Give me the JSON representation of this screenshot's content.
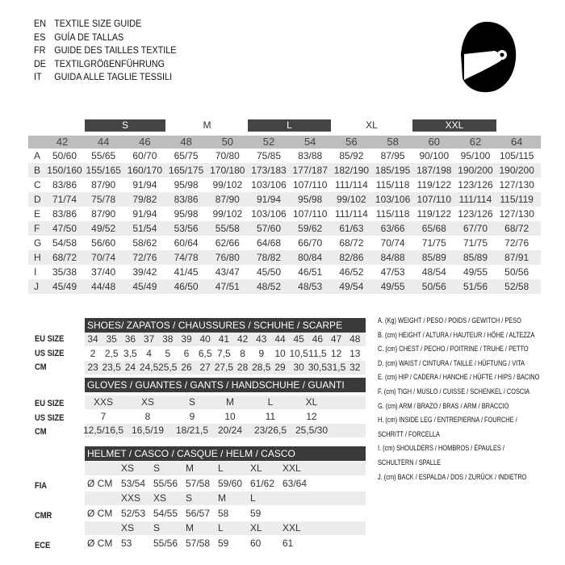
{
  "titles": [
    {
      "code": "EN",
      "text": "TEXTILE SIZE GUIDE"
    },
    {
      "code": "ES",
      "text": "GUÍA DE TALLAS"
    },
    {
      "code": "FR",
      "text": "GUIDE DES TAILLES TEXTILE"
    },
    {
      "code": "DE",
      "text": "TEXTILGRÖßENFÜHRUNG"
    },
    {
      "code": "IT",
      "text": "GUIDA ALLE TAGLIE TESSILI"
    }
  ],
  "helmet_icon": "helmet-icon",
  "textile": {
    "size_groups": [
      "S",
      "M",
      "L",
      "XL",
      "XXL"
    ],
    "columns": [
      "42",
      "44",
      "46",
      "48",
      "50",
      "52",
      "54",
      "56",
      "58",
      "60",
      "62",
      "64"
    ],
    "rows": [
      {
        "label": "A",
        "values": [
          "50/60",
          "55/65",
          "60/70",
          "65/75",
          "70/80",
          "75/85",
          "83/88",
          "85/92",
          "87/95",
          "90/100",
          "95/100",
          "105/115"
        ]
      },
      {
        "label": "B",
        "values": [
          "150/160",
          "155/165",
          "160/170",
          "165/175",
          "170/180",
          "173/183",
          "177/187",
          "182/190",
          "185/195",
          "187/198",
          "190/200",
          "190/200"
        ]
      },
      {
        "label": "C",
        "values": [
          "83/86",
          "87/90",
          "91/94",
          "95/98",
          "99/102",
          "103/106",
          "107/110",
          "111/114",
          "115/118",
          "119/122",
          "123/126",
          "127/130"
        ]
      },
      {
        "label": "D",
        "values": [
          "71/74",
          "75/78",
          "79/82",
          "83/86",
          "87/90",
          "91/94",
          "95/98",
          "99/102",
          "103/106",
          "107/110",
          "111/114",
          "115/119"
        ]
      },
      {
        "label": "E",
        "values": [
          "83/86",
          "87/90",
          "91/94",
          "95/98",
          "99/102",
          "103/106",
          "107/110",
          "111/114",
          "115/118",
          "119/122",
          "123/126",
          "127/130"
        ]
      },
      {
        "label": "F",
        "values": [
          "47/50",
          "49/52",
          "51/54",
          "53/56",
          "55/58",
          "57/60",
          "59/62",
          "61/63",
          "63/66",
          "65/68",
          "67/70",
          "68/72"
        ]
      },
      {
        "label": "G",
        "values": [
          "54/58",
          "56/60",
          "58/62",
          "60/64",
          "62/66",
          "64/68",
          "66/70",
          "68/72",
          "70/74",
          "71/75",
          "71/75",
          "72/76"
        ]
      },
      {
        "label": "H",
        "values": [
          "68/72",
          "70/74",
          "72/76",
          "74/78",
          "76/80",
          "78/82",
          "80/84",
          "82/86",
          "84/88",
          "85/89",
          "85/89",
          "87/91"
        ]
      },
      {
        "label": "I",
        "values": [
          "35/38",
          "37/40",
          "39/42",
          "41/45",
          "43/47",
          "45/50",
          "46/51",
          "46/52",
          "47/53",
          "48/54",
          "49/55",
          "50/56"
        ]
      },
      {
        "label": "J",
        "values": [
          "45/49",
          "44/48",
          "45/49",
          "46/50",
          "47/51",
          "48/52",
          "48/53",
          "49/54",
          "49/55",
          "50/56",
          "51/56",
          "52/58"
        ]
      }
    ]
  },
  "shoes": {
    "title": "SHOES/ ZAPATOS / CHAUSSURES / SCHUHE / SCARPE",
    "rows": [
      {
        "label": "EU SIZE",
        "values": [
          "34",
          "35",
          "36",
          "37",
          "38",
          "39",
          "40",
          "41",
          "42",
          "43",
          "44",
          "45",
          "46",
          "47",
          "48"
        ]
      },
      {
        "label": "US SIZE",
        "values": [
          "2",
          "2,5",
          "3,5",
          "4",
          "5",
          "6",
          "6,5",
          "7,5",
          "8",
          "9",
          "10",
          "10,5",
          "11,5",
          "12",
          "13"
        ]
      },
      {
        "label": "CM",
        "values": [
          "23",
          "23,5",
          "24",
          "24,5",
          "25,5",
          "26",
          "27",
          "27,5",
          "28",
          "28,5",
          "29",
          "30",
          "30,5",
          "31,5",
          "32"
        ]
      }
    ]
  },
  "gloves": {
    "title": "GLOVES / GUANTES / GANTS / HANDSCHUHE / GUANTI",
    "rows": [
      {
        "label": "EU SIZE",
        "values": [
          "XXS",
          "XS",
          "S",
          "M",
          "L",
          "XL"
        ]
      },
      {
        "label": "US SIZE",
        "values": [
          "7",
          "8",
          "9",
          "10",
          "11",
          "12"
        ]
      },
      {
        "label": "CM",
        "values": [
          "12,5/16,5",
          "16,5/19",
          "18/21,5",
          "20/24",
          "23/26,5",
          "25,5/30"
        ]
      }
    ]
  },
  "helmet": {
    "title": "HELMET / CASCO / CASQUE / HELM / CASCO",
    "unit": "Ø CM",
    "standards": [
      {
        "label": "FIA",
        "sizes": [
          "XS",
          "S",
          "M",
          "L",
          "XL",
          "XXL"
        ],
        "values": [
          "53/54",
          "55/56",
          "57/58",
          "59/60",
          "61/62",
          "63/64"
        ]
      },
      {
        "label": "CMR",
        "sizes": [
          "XXS",
          "XS",
          "S",
          "M",
          "L"
        ],
        "values": [
          "52/53",
          "54/55",
          "56/57",
          "58",
          "59"
        ]
      },
      {
        "label": "ECE",
        "sizes": [
          "XS",
          "S",
          "M",
          "L",
          "XL",
          "XXL"
        ],
        "values": [
          "53",
          "55/56",
          "57/58",
          "59",
          "60",
          "61"
        ]
      }
    ]
  },
  "legend": [
    "A. (Kg) WEIGHT / PESO / POIDS / GEWITCH / PESO",
    "B. (cm) HEIGHT / ALTURA / HAUTEUR / HÖHE / ALTEZZA",
    "C. (cm) CHEST / PECHO / POITRINE / TRUHE / PETTO",
    "D. (cm) WAIST / CINTURA / TAILLE / HÜFTUNG / VITA",
    "E. (cm) HIP / CADERA / HANCHE / HÜFTE / HIPS /  BACINO",
    "F.  (cm) TIGH / MUSLO / CUISSE / SCHENKEL / COSCIA",
    "G. (cm) ARM  / BRAZO / BRAS / ARM / BRACCIO",
    "H. (cm) INSIDE LEG / ENTREPIERNA / FOURCHE /",
    "SCHRITT / FORCELLA",
    "I.  (cm) SHOULDERS / HOMBROS / ÉPAULES /",
    "SCHULTERN / SPALLE",
    "J. (cm) BACK / ESPALDA / DOS / ZURÜCK / INDIETRO"
  ]
}
